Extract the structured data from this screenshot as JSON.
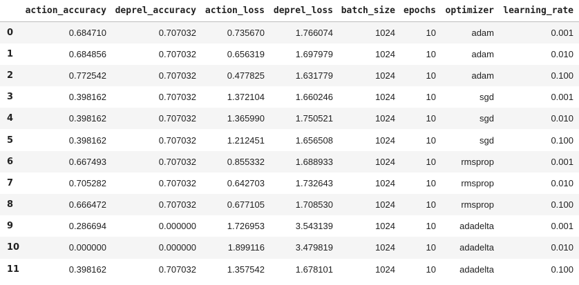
{
  "table": {
    "index_header": "",
    "columns": [
      "action_accuracy",
      "deprel_accuracy",
      "action_loss",
      "deprel_loss",
      "batch_size",
      "epochs",
      "optimizer",
      "learning_rate"
    ],
    "rows": [
      {
        "index": "0",
        "cells": [
          "0.684710",
          "0.707032",
          "0.735670",
          "1.766074",
          "1024",
          "10",
          "adam",
          "0.001"
        ]
      },
      {
        "index": "1",
        "cells": [
          "0.684856",
          "0.707032",
          "0.656319",
          "1.697979",
          "1024",
          "10",
          "adam",
          "0.010"
        ]
      },
      {
        "index": "2",
        "cells": [
          "0.772542",
          "0.707032",
          "0.477825",
          "1.631779",
          "1024",
          "10",
          "adam",
          "0.100"
        ]
      },
      {
        "index": "3",
        "cells": [
          "0.398162",
          "0.707032",
          "1.372104",
          "1.660246",
          "1024",
          "10",
          "sgd",
          "0.001"
        ]
      },
      {
        "index": "4",
        "cells": [
          "0.398162",
          "0.707032",
          "1.365990",
          "1.750521",
          "1024",
          "10",
          "sgd",
          "0.010"
        ]
      },
      {
        "index": "5",
        "cells": [
          "0.398162",
          "0.707032",
          "1.212451",
          "1.656508",
          "1024",
          "10",
          "sgd",
          "0.100"
        ]
      },
      {
        "index": "6",
        "cells": [
          "0.667493",
          "0.707032",
          "0.855332",
          "1.688933",
          "1024",
          "10",
          "rmsprop",
          "0.001"
        ]
      },
      {
        "index": "7",
        "cells": [
          "0.705282",
          "0.707032",
          "0.642703",
          "1.732643",
          "1024",
          "10",
          "rmsprop",
          "0.010"
        ]
      },
      {
        "index": "8",
        "cells": [
          "0.666472",
          "0.707032",
          "0.677105",
          "1.708530",
          "1024",
          "10",
          "rmsprop",
          "0.100"
        ]
      },
      {
        "index": "9",
        "cells": [
          "0.286694",
          "0.000000",
          "1.726953",
          "3.543139",
          "1024",
          "10",
          "adadelta",
          "0.001"
        ]
      },
      {
        "index": "10",
        "cells": [
          "0.000000",
          "0.000000",
          "1.899116",
          "3.479819",
          "1024",
          "10",
          "adadelta",
          "0.010"
        ]
      },
      {
        "index": "11",
        "cells": [
          "0.398162",
          "0.707032",
          "1.357542",
          "1.678101",
          "1024",
          "10",
          "adadelta",
          "0.100"
        ]
      }
    ]
  }
}
